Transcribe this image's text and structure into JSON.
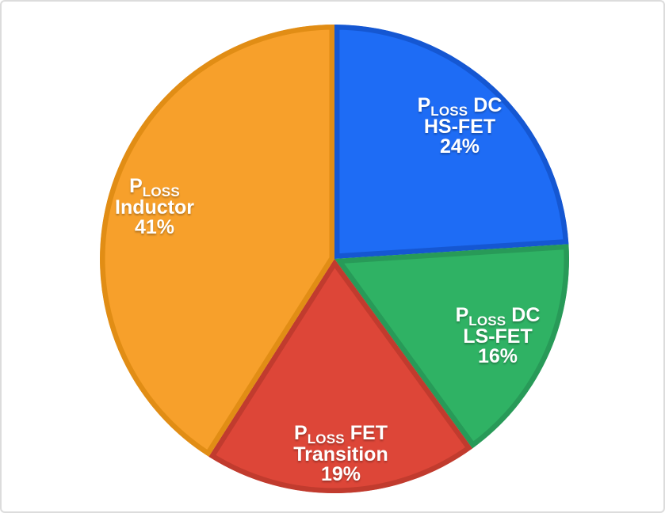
{
  "page": {
    "background": "#ffffff",
    "card_border_color": "#dcdcdc",
    "label_text_color": "#ffffff"
  },
  "chart_data": {
    "type": "pie",
    "title": "",
    "legend": "none",
    "labels_position": "inside",
    "start_angle_deg": 0,
    "direction": "clockwise",
    "total_percent": 100,
    "slices": [
      {
        "name": "ploss-dc-hs-fet",
        "label_line1_main": "P",
        "label_line1_sub": "LOSS",
        "label_line1_rest": " DC",
        "label_line2": "HS-FET",
        "percent_label": "24%",
        "value": 24,
        "fill": "#1E6CF5",
        "border": "#1557D2",
        "label_radius": 0.78
      },
      {
        "name": "ploss-dc-ls-fet",
        "label_line1_main": "P",
        "label_line1_sub": "LOSS",
        "label_line1_rest": " DC",
        "label_line2": "LS-FET",
        "percent_label": "16%",
        "value": 16,
        "fill": "#2FB264",
        "border": "#289A58",
        "label_radius": 0.77
      },
      {
        "name": "ploss-fet-transition",
        "label_line1_main": "P",
        "label_line1_sub": "LOSS",
        "label_line1_rest": " FET",
        "label_line2": "Transition",
        "percent_label": "19%",
        "value": 19,
        "fill": "#DD4638",
        "border": "#C13B2E",
        "label_radius": 0.83
      },
      {
        "name": "ploss-inductor",
        "label_line1_main": "P",
        "label_line1_sub": "LOSS",
        "label_line1_rest": "",
        "label_line2": "Inductor",
        "percent_label": "41%",
        "value": 41,
        "fill": "#F7A02B",
        "border": "#E18D15",
        "label_radius": 0.8
      }
    ]
  }
}
